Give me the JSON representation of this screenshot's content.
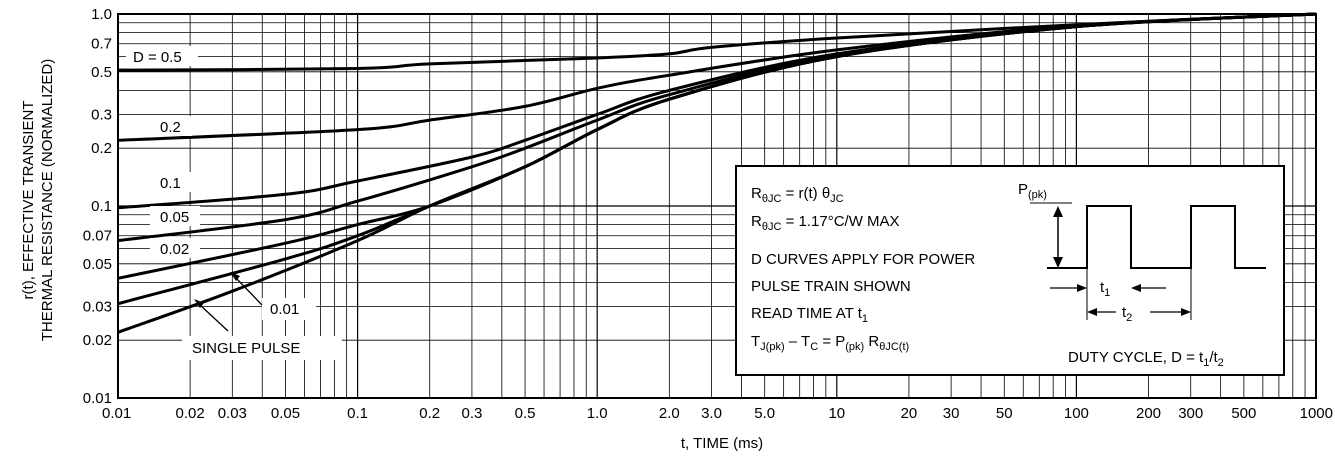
{
  "chart_data": {
    "type": "line",
    "xlabel": "t, TIME (ms)",
    "ylabel_line1": "r(t), EFFECTIVE TRANSIENT",
    "ylabel_line2": "THERMAL RESISTANCE (NORMALIZED)",
    "x_scale": "log",
    "y_scale": "log",
    "xlim": [
      0.01,
      1000
    ],
    "ylim": [
      0.01,
      1.0
    ],
    "grid": true,
    "x_ticks": [
      {
        "value": 0.01,
        "label": "0.01"
      },
      {
        "value": 0.02,
        "label": "0.02"
      },
      {
        "value": 0.03,
        "label": "0.03"
      },
      {
        "value": 0.05,
        "label": "0.05"
      },
      {
        "value": 0.1,
        "label": "0.1"
      },
      {
        "value": 0.2,
        "label": "0.2"
      },
      {
        "value": 0.3,
        "label": "0.3"
      },
      {
        "value": 0.5,
        "label": "0.5"
      },
      {
        "value": 1.0,
        "label": "1.0"
      },
      {
        "value": 2.0,
        "label": "2.0"
      },
      {
        "value": 3.0,
        "label": "3.0"
      },
      {
        "value": 5.0,
        "label": "5.0"
      },
      {
        "value": 10,
        "label": "10"
      },
      {
        "value": 20,
        "label": "20"
      },
      {
        "value": 30,
        "label": "30"
      },
      {
        "value": 50,
        "label": "50"
      },
      {
        "value": 100,
        "label": "100"
      },
      {
        "value": 200,
        "label": "200"
      },
      {
        "value": 300,
        "label": "300"
      },
      {
        "value": 500,
        "label": "500"
      },
      {
        "value": 1000,
        "label": "1000"
      }
    ],
    "y_ticks": [
      {
        "value": 1.0,
        "label": "1.0"
      },
      {
        "value": 0.7,
        "label": "0.7"
      },
      {
        "value": 0.5,
        "label": "0.5"
      },
      {
        "value": 0.3,
        "label": "0.3"
      },
      {
        "value": 0.2,
        "label": "0.2"
      },
      {
        "value": 0.1,
        "label": "0.1"
      },
      {
        "value": 0.07,
        "label": "0.07"
      },
      {
        "value": 0.05,
        "label": "0.05"
      },
      {
        "value": 0.03,
        "label": "0.03"
      },
      {
        "value": 0.02,
        "label": "0.02"
      },
      {
        "value": 0.01,
        "label": "0.01"
      }
    ],
    "series": [
      {
        "name": "D = 0.5",
        "x": [
          0.01,
          0.1,
          0.2,
          1.0,
          2.0,
          3.0,
          10,
          100,
          1000
        ],
        "y": [
          0.51,
          0.52,
          0.55,
          0.59,
          0.62,
          0.67,
          0.75,
          0.88,
          1.0
        ]
      },
      {
        "name": "0.2",
        "x": [
          0.01,
          0.1,
          0.2,
          0.5,
          1.0,
          2.0,
          10,
          100,
          1000
        ],
        "y": [
          0.22,
          0.25,
          0.28,
          0.33,
          0.41,
          0.48,
          0.65,
          0.87,
          1.0
        ]
      },
      {
        "name": "0.1",
        "x": [
          0.01,
          0.05,
          0.1,
          0.3,
          0.5,
          1.0,
          2.0,
          10,
          100,
          1000
        ],
        "y": [
          0.098,
          0.115,
          0.135,
          0.18,
          0.22,
          0.3,
          0.4,
          0.62,
          0.86,
          1.0
        ]
      },
      {
        "name": "0.05",
        "x": [
          0.01,
          0.05,
          0.1,
          0.3,
          0.5,
          1.0,
          2.0,
          10,
          100,
          1000
        ],
        "y": [
          0.066,
          0.085,
          0.106,
          0.16,
          0.2,
          0.28,
          0.38,
          0.61,
          0.86,
          1.0
        ]
      },
      {
        "name": "0.02",
        "x": [
          0.01,
          0.05,
          0.1,
          0.2,
          0.5,
          1.0,
          2.0,
          10,
          100,
          1000
        ],
        "y": [
          0.042,
          0.064,
          0.08,
          0.1,
          0.16,
          0.25,
          0.36,
          0.6,
          0.86,
          1.0
        ]
      },
      {
        "name": "0.01",
        "x": [
          0.01,
          0.05,
          0.1,
          0.2,
          0.5,
          1.0,
          2.0,
          10,
          100,
          1000
        ],
        "y": [
          0.031,
          0.053,
          0.07,
          0.1,
          0.16,
          0.25,
          0.36,
          0.6,
          0.86,
          1.0
        ]
      },
      {
        "name": "SINGLE PULSE",
        "x": [
          0.01,
          0.03,
          0.1,
          0.2,
          0.5,
          1.0,
          2.0,
          10,
          100,
          1000
        ],
        "y": [
          0.022,
          0.036,
          0.066,
          0.1,
          0.16,
          0.25,
          0.36,
          0.6,
          0.86,
          1.0
        ]
      }
    ],
    "curve_labels": [
      "D = 0.5",
      "0.2",
      "0.1",
      "0.05",
      "0.02",
      "0.01",
      "SINGLE PULSE"
    ],
    "inset": {
      "formula1_main": "R",
      "formula1_sub": "θJC",
      "formula1_rest": " = r(t) θ",
      "formula1_sub2": "JC",
      "formula2_main": "R",
      "formula2_sub": "θJC",
      "formula2_rest": " = 1.17°C/W MAX",
      "line3": "D CURVES APPLY FOR POWER",
      "line4": "PULSE TRAIN SHOWN",
      "line5_main": "READ TIME AT t",
      "line5_sub": "1",
      "line6_a": "T",
      "line6_a_sub": "J(pk)",
      "line6_b": " – T",
      "line6_b_sub": "C",
      "line6_c": " = P",
      "line6_c_sub": "(pk)",
      "line6_d": " R",
      "line6_d_sub": "θJC(t)",
      "pulse_label_main": "P",
      "pulse_label_sub": "(pk)",
      "t1_main": "t",
      "t1_sub": "1",
      "t2_main": "t",
      "t2_sub": "2",
      "duty_main": "DUTY CYCLE, D = t",
      "duty_sub1": "1",
      "duty_slash": "/t",
      "duty_sub2": "2"
    }
  }
}
